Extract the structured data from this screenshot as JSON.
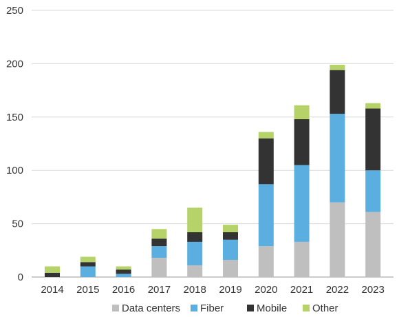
{
  "chart_data": {
    "type": "bar",
    "stacked": true,
    "title": "",
    "xlabel": "",
    "ylabel": "",
    "categories": [
      "2014",
      "2015",
      "2016",
      "2017",
      "2018",
      "2019",
      "2020",
      "2021",
      "2022",
      "2023"
    ],
    "ylim": [
      0,
      250
    ],
    "yticks": [
      0,
      50,
      100,
      150,
      200,
      250
    ],
    "grid": true,
    "legend_position": "bottom",
    "series": [
      {
        "name": "Data centers",
        "color": "#bfbfbf",
        "values": [
          0,
          0,
          0,
          18,
          11,
          16,
          29,
          33,
          70,
          61
        ]
      },
      {
        "name": "Fiber",
        "color": "#5baee0",
        "values": [
          0,
          10,
          3,
          11,
          22,
          19,
          58,
          72,
          83,
          39
        ]
      },
      {
        "name": "Mobile",
        "color": "#333333",
        "values": [
          4,
          4,
          4,
          7,
          9,
          7,
          43,
          43,
          41,
          58
        ]
      },
      {
        "name": "Other",
        "color": "#b6d36a",
        "values": [
          6,
          5,
          3,
          9,
          23,
          7,
          6,
          13,
          5,
          5
        ]
      }
    ]
  }
}
